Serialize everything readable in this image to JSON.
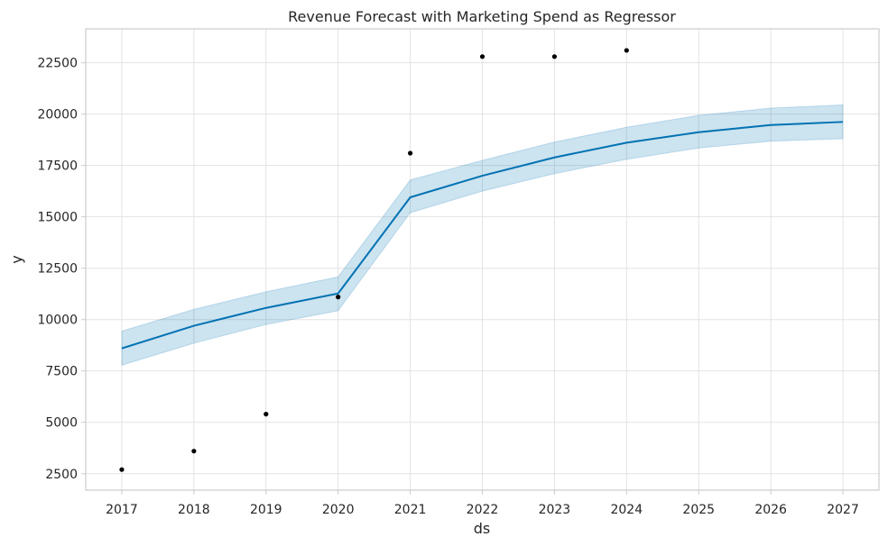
{
  "chart_data": {
    "type": "line",
    "title": "Revenue Forecast with Marketing Spend as Regressor",
    "xlabel": "ds",
    "ylabel": "y",
    "x": [
      2017,
      2018,
      2019,
      2020,
      2021,
      2022,
      2023,
      2024,
      2025,
      2026,
      2027
    ],
    "xlim": [
      2016.5,
      2027.5
    ],
    "ylim": [
      1700,
      24150
    ],
    "yticks": [
      2500,
      5000,
      7500,
      10000,
      12500,
      15000,
      17500,
      20000,
      22500
    ],
    "grid": true,
    "series": [
      {
        "kind": "forecast",
        "values": [
          8600,
          9700,
          10570,
          11270,
          15950,
          17000,
          17890,
          18610,
          19120,
          19470,
          19620
        ],
        "color": "#0072B2"
      },
      {
        "kind": "uncertainty-interval",
        "lower": [
          7780,
          8850,
          9760,
          10430,
          15200,
          16250,
          17100,
          17800,
          18350,
          18680,
          18800
        ],
        "upper": [
          9440,
          10500,
          11350,
          12080,
          16800,
          17750,
          18640,
          19360,
          19940,
          20290,
          20450
        ],
        "color": "#0072B2"
      },
      {
        "kind": "observed",
        "x": [
          2017,
          2018,
          2019,
          2020,
          2021,
          2022,
          2023,
          2024
        ],
        "values": [
          2700,
          3600,
          5400,
          11100,
          18100,
          22800,
          22800,
          23100
        ],
        "color": "#000000"
      }
    ]
  }
}
